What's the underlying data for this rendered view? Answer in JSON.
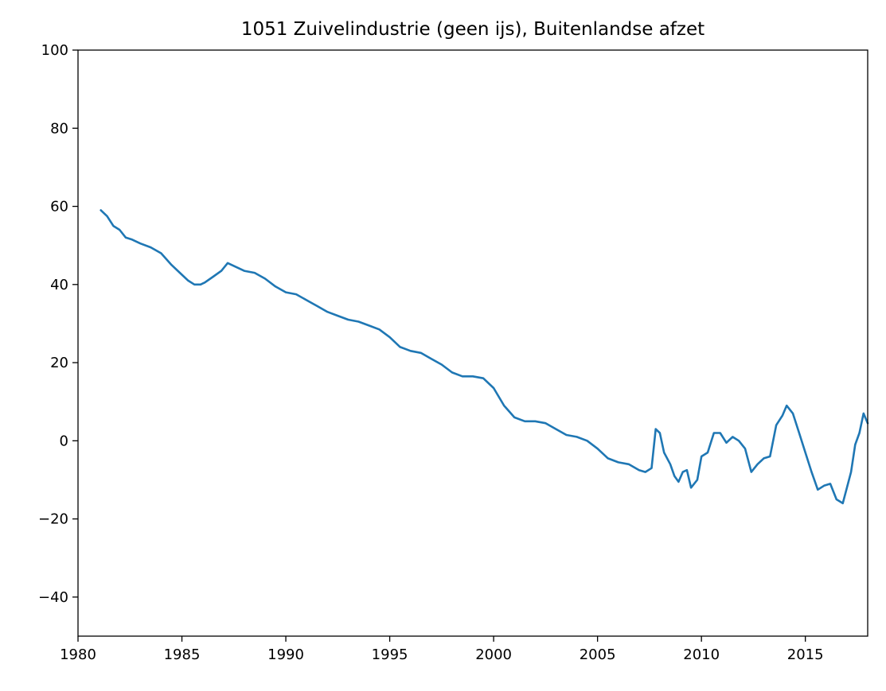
{
  "chart_data": {
    "type": "line",
    "title": "1051 Zuivelindustrie (geen ijs), Buitenlandse afzet",
    "xlabel": "",
    "ylabel": "",
    "xlim": [
      1980,
      2018
    ],
    "ylim": [
      -50,
      100
    ],
    "x_ticks": [
      1980,
      1985,
      1990,
      1995,
      2000,
      2005,
      2010,
      2015
    ],
    "y_ticks": [
      -40,
      -20,
      0,
      20,
      40,
      60,
      80,
      100
    ],
    "y_tick_labels": [
      "−40",
      "−20",
      "0",
      "20",
      "40",
      "60",
      "80",
      "100"
    ],
    "grid": false,
    "legend": "none",
    "series": [
      {
        "color": "#1f77b4",
        "x": [
          1981.1,
          1981.4,
          1981.7,
          1982.0,
          1982.3,
          1982.6,
          1983.0,
          1983.5,
          1984.0,
          1984.5,
          1985.0,
          1985.3,
          1985.6,
          1985.9,
          1986.1,
          1986.5,
          1986.9,
          1987.2,
          1987.6,
          1988.0,
          1988.5,
          1989.0,
          1989.5,
          1990.0,
          1990.5,
          1991.0,
          1991.5,
          1992.0,
          1992.5,
          1993.0,
          1993.5,
          1994.0,
          1994.5,
          1995.0,
          1995.5,
          1996.0,
          1996.5,
          1997.0,
          1997.5,
          1998.0,
          1998.5,
          1999.0,
          1999.5,
          2000.0,
          2000.5,
          2001.0,
          2001.5,
          2002.0,
          2002.5,
          2003.0,
          2003.5,
          2004.0,
          2004.5,
          2005.0,
          2005.5,
          2006.0,
          2006.5,
          2007.0,
          2007.3,
          2007.6,
          2007.8,
          2008.0,
          2008.2,
          2008.5,
          2008.7,
          2008.9,
          2009.1,
          2009.3,
          2009.5,
          2009.8,
          2010.0,
          2010.3,
          2010.6,
          2010.9,
          2011.2,
          2011.5,
          2011.8,
          2012.1,
          2012.4,
          2012.7,
          2013.0,
          2013.3,
          2013.6,
          2013.9,
          2014.1,
          2014.4,
          2014.7,
          2015.0,
          2015.3,
          2015.6,
          2015.9,
          2016.2,
          2016.5,
          2016.8,
          2017.0,
          2017.2,
          2017.4,
          2017.6,
          2017.8,
          2018.0
        ],
        "y": [
          59.0,
          57.5,
          55.0,
          54.0,
          52.0,
          51.5,
          50.5,
          49.5,
          48.0,
          45.0,
          42.5,
          41.0,
          40.0,
          40.0,
          40.5,
          42.0,
          43.5,
          45.5,
          44.5,
          43.5,
          43.0,
          41.5,
          39.5,
          38.0,
          37.5,
          36.0,
          34.5,
          33.0,
          32.0,
          31.0,
          30.5,
          29.5,
          28.5,
          26.5,
          24.0,
          23.0,
          22.5,
          21.0,
          19.5,
          17.5,
          16.5,
          16.5,
          16.0,
          13.5,
          9.0,
          6.0,
          5.0,
          5.0,
          4.5,
          3.0,
          1.5,
          1.0,
          0.0,
          -2.0,
          -4.5,
          -5.5,
          -6.0,
          -7.5,
          -8.0,
          -7.0,
          3.0,
          2.0,
          -3.0,
          -6.0,
          -9.0,
          -10.5,
          -8.0,
          -7.5,
          -12.0,
          -10.0,
          -4.0,
          -3.0,
          2.0,
          2.0,
          -0.5,
          1.0,
          0.0,
          -2.0,
          -8.0,
          -6.0,
          -4.5,
          -4.0,
          4.0,
          6.5,
          9.0,
          7.0,
          2.0,
          -3.0,
          -8.0,
          -12.5,
          -11.5,
          -11.0,
          -15.0,
          -16.0,
          -12.0,
          -8.0,
          -1.0,
          2.0,
          7.0,
          4.5
        ]
      }
    ]
  }
}
